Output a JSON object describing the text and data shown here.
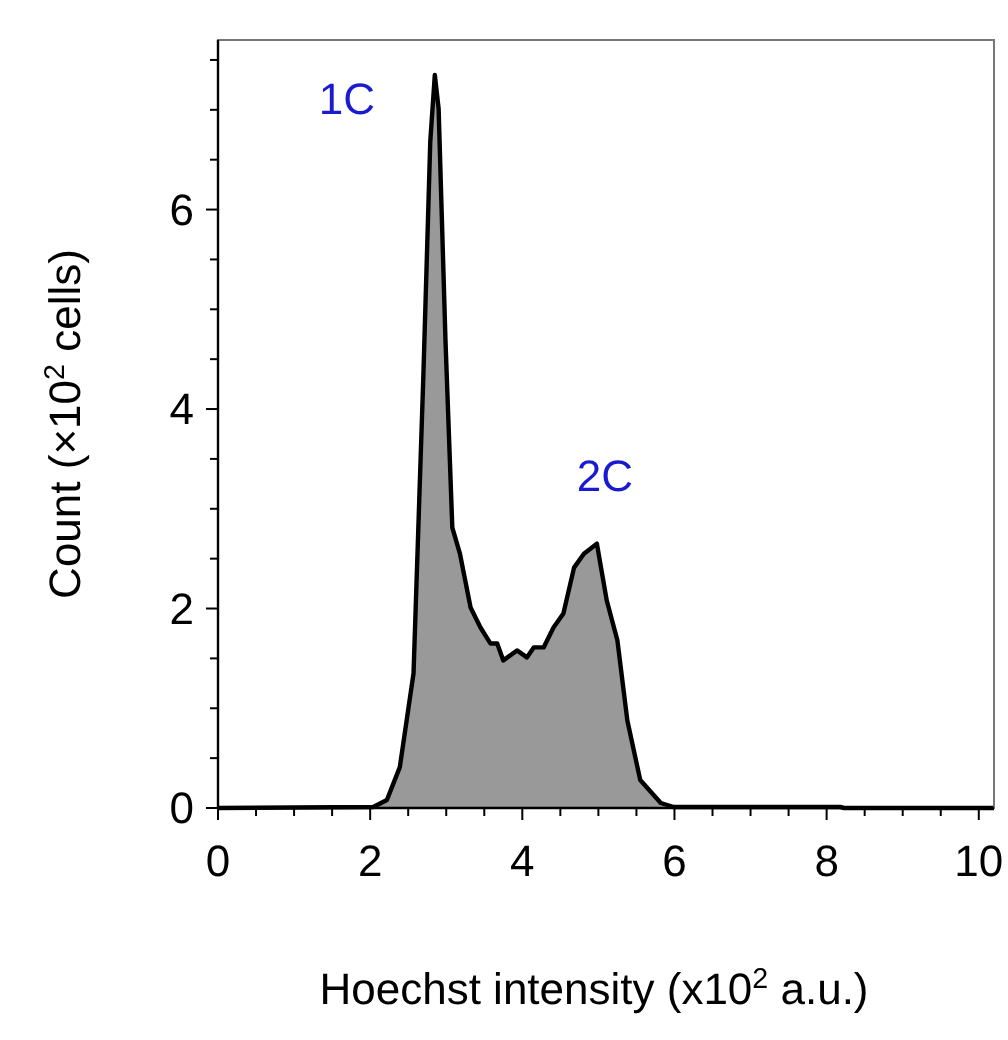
{
  "chart_data": {
    "type": "area",
    "xlabel": "Hoechst intensity (x10$^{2}$ a.u.)",
    "ylabel": "Count (×10$^{2}$ cells)",
    "x": [
      0,
      2.04,
      2.22,
      2.39,
      2.57,
      2.7,
      2.79,
      2.85,
      2.9,
      2.99,
      3.08,
      3.18,
      3.32,
      3.45,
      3.58,
      3.67,
      3.75,
      3.93,
      4.06,
      4.15,
      4.28,
      4.41,
      4.54,
      4.68,
      4.81,
      4.98,
      5.11,
      5.25,
      5.38,
      5.55,
      5.82,
      5.99,
      8.18,
      8.23,
      10.2
    ],
    "series": [
      {
        "color": "#999999",
        "values": [
          0,
          0.01,
          0.08,
          0.41,
          1.35,
          4.35,
          6.68,
          7.35,
          7.01,
          4.69,
          2.81,
          2.55,
          2.01,
          1.81,
          1.65,
          1.65,
          1.48,
          1.58,
          1.51,
          1.61,
          1.61,
          1.81,
          1.95,
          2.41,
          2.55,
          2.65,
          2.08,
          1.68,
          0.88,
          0.28,
          0.05,
          0.01,
          0.01,
          0,
          0
        ]
      }
    ],
    "xlim": [
      0,
      10.2
    ],
    "ylim": [
      0,
      7.7
    ],
    "xticks": [
      0,
      {
        "value": 0.5,
        "label": null
      },
      {
        "value": 1,
        "label": null
      },
      {
        "value": 1.5,
        "label": null
      },
      2,
      {
        "value": 2.5,
        "label": null
      },
      {
        "value": 3,
        "label": null
      },
      {
        "value": 3.5,
        "label": null
      },
      4,
      {
        "value": 4.5,
        "label": null
      },
      {
        "value": 5,
        "label": null
      },
      {
        "value": 5.5,
        "label": null
      },
      6,
      {
        "value": 6.5,
        "label": null
      },
      {
        "value": 7,
        "label": null
      },
      {
        "value": 7.5,
        "label": null
      },
      8,
      {
        "value": 8.5,
        "label": null
      },
      {
        "value": 9,
        "label": null
      },
      {
        "value": 9.5,
        "label": null
      },
      10
    ],
    "yticks": [
      0,
      {
        "value": 0.5,
        "label": null
      },
      {
        "value": 1,
        "label": null
      },
      {
        "value": 1.5,
        "label": null
      },
      2,
      {
        "value": 2.5,
        "label": null
      },
      {
        "value": 3,
        "label": null
      },
      {
        "value": 3.5,
        "label": null
      },
      4,
      {
        "value": 4.5,
        "label": null
      },
      {
        "value": 5,
        "label": null
      },
      {
        "value": 5.5,
        "label": null
      },
      6,
      {
        "value": 6.5,
        "label": null
      },
      {
        "value": 7,
        "label": null
      },
      {
        "value": 7.5,
        "label": null
      }
    ],
    "annotations": [
      "1C",
      "2C"
    ],
    "grid": false
  }
}
